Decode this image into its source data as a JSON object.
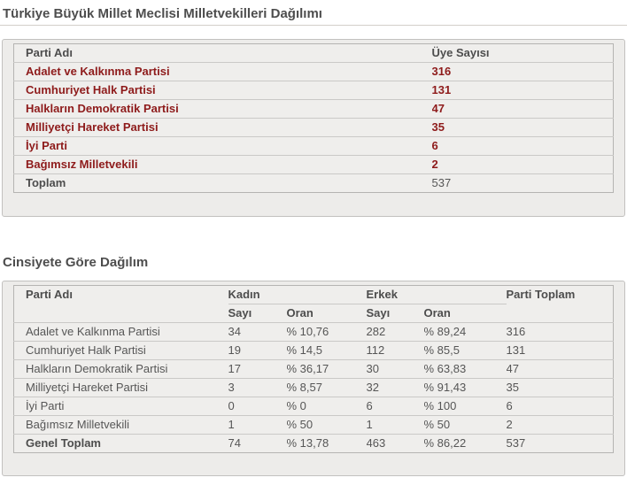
{
  "colors": {
    "accent_link": "#8e1b1b",
    "heading_text": "#4d4d4d",
    "body_text": "#565656",
    "panel_background": "#edecea"
  },
  "section1": {
    "title": "Türkiye Büyük Millet Meclisi Milletvekilleri Dağılımı",
    "headers": {
      "party": "Parti Adı",
      "count": "Üye Sayısı"
    },
    "rows": [
      {
        "party": "Adalet ve Kalkınma Partisi",
        "count": "316"
      },
      {
        "party": "Cumhuriyet Halk Partisi",
        "count": "131"
      },
      {
        "party": "Halkların Demokratik Partisi",
        "count": "47"
      },
      {
        "party": "Milliyetçi Hareket Partisi",
        "count": "35"
      },
      {
        "party": "İyi Parti",
        "count": "6"
      },
      {
        "party": "Bağımsız Milletvekili",
        "count": "2"
      }
    ],
    "total": {
      "label": "Toplam",
      "count": "537"
    }
  },
  "section2": {
    "title": "Cinsiyete Göre Dağılım",
    "headers": {
      "party": "Parti Adı",
      "female": "Kadın",
      "male": "Erkek",
      "count": "Sayı",
      "ratio": "Oran",
      "party_total": "Parti Toplam"
    },
    "rows": [
      {
        "party": "Adalet ve Kalkınma Partisi",
        "f_count": "34",
        "f_ratio": "% 10,76",
        "m_count": "282",
        "m_ratio": "% 89,24",
        "total": "316"
      },
      {
        "party": "Cumhuriyet Halk Partisi",
        "f_count": "19",
        "f_ratio": "% 14,5",
        "m_count": "112",
        "m_ratio": "% 85,5",
        "total": "131"
      },
      {
        "party": "Halkların Demokratik Partisi",
        "f_count": "17",
        "f_ratio": "% 36,17",
        "m_count": "30",
        "m_ratio": "% 63,83",
        "total": "47"
      },
      {
        "party": "Milliyetçi Hareket Partisi",
        "f_count": "3",
        "f_ratio": "% 8,57",
        "m_count": "32",
        "m_ratio": "% 91,43",
        "total": "35"
      },
      {
        "party": "İyi Parti",
        "f_count": "0",
        "f_ratio": "% 0",
        "m_count": "6",
        "m_ratio": "% 100",
        "total": "6"
      },
      {
        "party": "Bağımsız Milletvekili",
        "f_count": "1",
        "f_ratio": "% 50",
        "m_count": "1",
        "m_ratio": "% 50",
        "total": "2"
      }
    ],
    "total_row": {
      "label": "Genel Toplam",
      "f_count": "74",
      "f_ratio": "% 13,78",
      "m_count": "463",
      "m_ratio": "% 86,22",
      "total": "537"
    }
  }
}
